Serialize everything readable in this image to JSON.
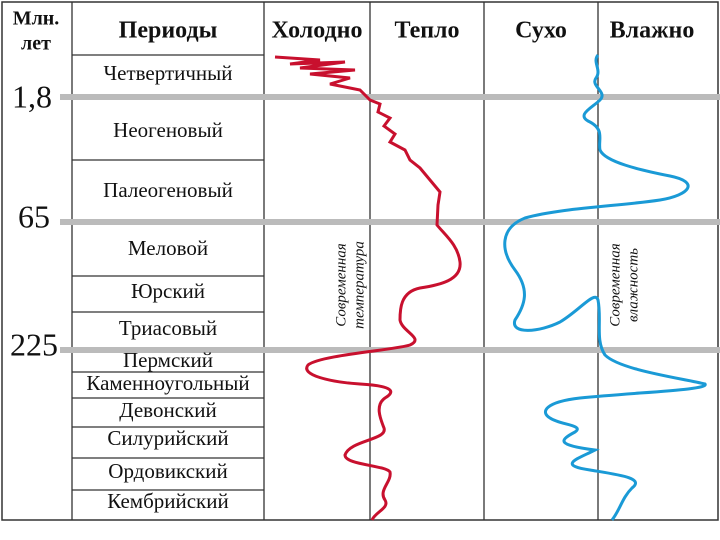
{
  "header": {
    "units": [
      "Млн.",
      "лет"
    ],
    "periods": "Периоды",
    "cold": "Холодно",
    "warm": "Тепло",
    "dry": "Сухо",
    "wet": "Влажно"
  },
  "ages": [
    "1,8",
    "65",
    "225"
  ],
  "periods": [
    "Четвертичный",
    "Неогеновый",
    "Палеогеновый",
    "Меловой",
    "Юрский",
    "Триасовый",
    "Пермский",
    "Каменноугольный",
    "Девонский",
    "Силурийский",
    "Ордовикский",
    "Кембрийский"
  ],
  "notes": {
    "temperature": [
      "Современная",
      "температура"
    ],
    "humidity": [
      "Современная",
      "влажность"
    ]
  }
}
